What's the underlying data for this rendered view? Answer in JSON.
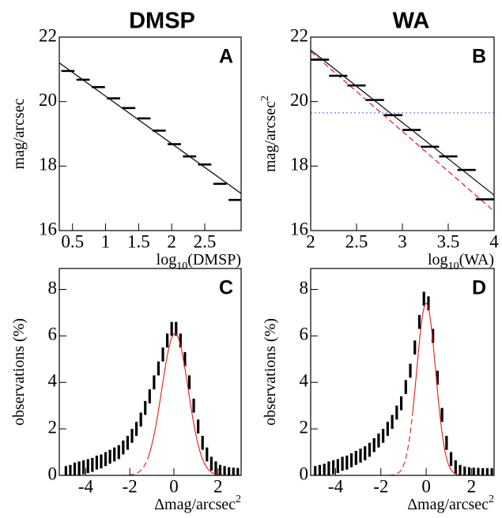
{
  "chart_data": [
    {
      "type": "errorbar",
      "title": "DMSP",
      "panel": "A",
      "xlabel": {
        "base": "log",
        "sub": "10",
        "rest": "(DMSP)"
      },
      "ylabel": {
        "base": "mag/arcsec"
      },
      "xlim": [
        0.3,
        3.05
      ],
      "ylim": [
        16,
        22
      ],
      "xticks": [
        0.5,
        1,
        1.5,
        2,
        2.5
      ],
      "yticks": [
        16,
        18,
        20,
        22
      ],
      "points": {
        "color": "#000000",
        "xerr": 0.1,
        "x": [
          0.43,
          0.66,
          0.89,
          1.12,
          1.35,
          1.58,
          1.81,
          2.04,
          2.27,
          2.5,
          2.73,
          2.96
        ],
        "values": [
          20.95,
          20.68,
          20.45,
          20.1,
          19.8,
          19.48,
          19.1,
          18.68,
          18.3,
          18.05,
          17.45,
          16.95
        ]
      },
      "lines": [
        {
          "color": "#000000",
          "style": "solid",
          "x": [
            0.3,
            3.05
          ],
          "values": [
            21.2,
            17.15
          ]
        }
      ]
    },
    {
      "type": "errorbar",
      "title": "WA",
      "panel": "B",
      "xlabel": {
        "base": "log",
        "sub": "10",
        "rest": "(WA)"
      },
      "ylabel": {
        "base": "mag/arcsec",
        "sup": "2"
      },
      "xlim": [
        2,
        4
      ],
      "ylim": [
        16,
        22
      ],
      "xticks": [
        2,
        2.5,
        3,
        3.5,
        4
      ],
      "yticks": [
        16,
        18,
        20,
        22
      ],
      "points": {
        "color": "#000000",
        "xerr": 0.1,
        "x": [
          2.1,
          2.3,
          2.5,
          2.7,
          2.9,
          3.1,
          3.3,
          3.5,
          3.7,
          3.9
        ],
        "values": [
          21.3,
          20.8,
          20.5,
          20.05,
          19.58,
          19.12,
          18.6,
          18.3,
          17.88,
          16.97
        ]
      },
      "lines": [
        {
          "color": "#000000",
          "style": "solid",
          "x": [
            2,
            4
          ],
          "values": [
            21.6,
            17.1
          ]
        },
        {
          "color": "#e41a1c",
          "style": "dashed",
          "x": [
            2,
            4
          ],
          "values": [
            21.55,
            16.6
          ]
        },
        {
          "color": "#6b6bd6",
          "style": "dotted",
          "x": [
            2,
            4
          ],
          "values": [
            19.65,
            19.65
          ]
        }
      ]
    },
    {
      "type": "histogram",
      "panel": "C",
      "xlabel": {
        "base": "Δmag/arcsec",
        "sup": "2"
      },
      "ylabel": {
        "base": "observations (%)"
      },
      "xlim": [
        -5.2,
        3.05
      ],
      "ylim": [
        0,
        8.9
      ],
      "xticks": [
        -4,
        -2,
        0,
        2
      ],
      "yticks": [
        0,
        2,
        4,
        6,
        8
      ],
      "points": {
        "color": "#000000",
        "error": 0.3,
        "x": [
          -4.9,
          -4.7,
          -4.5,
          -4.3,
          -4.1,
          -3.9,
          -3.7,
          -3.5,
          -3.3,
          -3.1,
          -2.9,
          -2.7,
          -2.5,
          -2.3,
          -2.1,
          -1.9,
          -1.7,
          -1.5,
          -1.3,
          -1.1,
          -0.9,
          -0.7,
          -0.5,
          -0.3,
          -0.1,
          0.1,
          0.3,
          0.5,
          0.7,
          0.9,
          1.1,
          1.3,
          1.5,
          1.7,
          1.9,
          2.1,
          2.3,
          2.5,
          2.7,
          2.9
        ],
        "values": [
          0.1,
          0.15,
          0.25,
          0.3,
          0.35,
          0.4,
          0.45,
          0.55,
          0.6,
          0.7,
          0.8,
          0.9,
          1.0,
          1.2,
          1.4,
          1.7,
          2.0,
          2.4,
          2.9,
          3.4,
          4.0,
          4.6,
          5.2,
          5.8,
          6.3,
          6.3,
          5.8,
          5.0,
          4.0,
          3.0,
          2.1,
          1.4,
          0.9,
          0.5,
          0.3,
          0.15,
          0.1,
          0.05,
          0.03,
          0.02
        ]
      },
      "fit": {
        "color": "#e41a1c",
        "amplitude": 6.1,
        "mean": 0.05,
        "sigma": 0.6,
        "range": [
          -1.2,
          3.05
        ]
      }
    },
    {
      "type": "histogram",
      "panel": "D",
      "xlabel": {
        "base": "Δmag/arcsec",
        "sup": "2"
      },
      "ylabel": {
        "base": "observations (%)"
      },
      "xlim": [
        -5.1,
        3.0
      ],
      "ylim": [
        0,
        8.9
      ],
      "xticks": [
        -4,
        -2,
        0,
        2
      ],
      "yticks": [
        0,
        2,
        4,
        6,
        8
      ],
      "points": {
        "color": "#000000",
        "error": 0.3,
        "x": [
          -4.9,
          -4.7,
          -4.5,
          -4.3,
          -4.1,
          -3.9,
          -3.7,
          -3.5,
          -3.3,
          -3.1,
          -2.9,
          -2.7,
          -2.5,
          -2.3,
          -2.1,
          -1.9,
          -1.7,
          -1.5,
          -1.3,
          -1.1,
          -0.9,
          -0.7,
          -0.5,
          -0.3,
          -0.1,
          0.1,
          0.3,
          0.5,
          0.7,
          0.9,
          1.1,
          1.3,
          1.5,
          1.7,
          1.9,
          2.1,
          2.3,
          2.5,
          2.7,
          2.9
        ],
        "values": [
          0.1,
          0.15,
          0.2,
          0.3,
          0.35,
          0.4,
          0.5,
          0.55,
          0.65,
          0.75,
          0.85,
          0.95,
          1.1,
          1.3,
          1.5,
          1.7,
          2.0,
          2.3,
          2.7,
          3.1,
          3.8,
          4.5,
          5.5,
          6.6,
          7.6,
          7.4,
          6.0,
          4.2,
          2.6,
          1.4,
          0.7,
          0.35,
          0.15,
          0.08,
          0.05,
          0.03,
          0.02,
          0.01,
          0.01,
          0.01
        ]
      },
      "fit": {
        "color": "#e41a1c",
        "amplitude": 7.4,
        "mean": 0.0,
        "sigma": 0.42,
        "range": [
          -0.6,
          3.0
        ]
      }
    }
  ]
}
